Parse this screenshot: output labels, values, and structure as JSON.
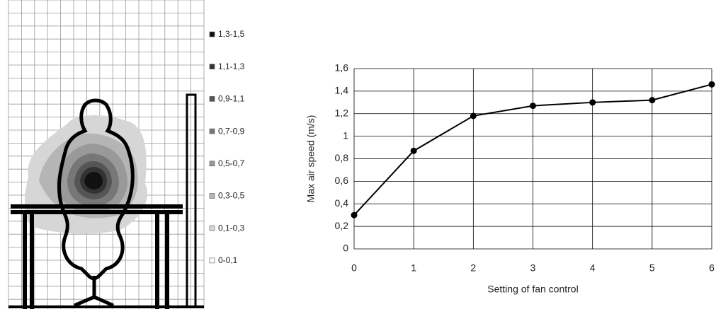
{
  "chart_data": [
    {
      "type": "contour",
      "legend": [
        {
          "label": "1,3-1,5",
          "color": "#111111"
        },
        {
          "label": "1,1-1,3",
          "color": "#333333"
        },
        {
          "label": "0,9-1,1",
          "color": "#555555"
        },
        {
          "label": "0,7-0,9",
          "color": "#777777"
        },
        {
          "label": "0,5-0,7",
          "color": "#999999"
        },
        {
          "label": "0,3-0,5",
          "color": "#b5b5b5"
        },
        {
          "label": "0,1-0,3",
          "color": "#d6d6d6"
        },
        {
          "label": "0-0,1",
          "color": "#ffffff"
        }
      ]
    },
    {
      "type": "line",
      "xlabel": "Setting of fan control",
      "ylabel": "Max air speed (m/s)",
      "x": [
        0,
        1,
        2,
        3,
        4,
        5,
        6
      ],
      "values": [
        0.3,
        0.87,
        1.18,
        1.27,
        1.3,
        1.32,
        1.46
      ],
      "color": "#000000",
      "xlim": [
        0,
        6
      ],
      "xticks": [
        0,
        1,
        2,
        3,
        4,
        5,
        6
      ],
      "ylim": [
        0,
        1.6
      ],
      "yticks": [
        0,
        {
          "value": 0.2,
          "label": "0,2"
        },
        {
          "value": 0.4,
          "label": "0,4"
        },
        {
          "value": 0.6,
          "label": "0,6"
        },
        {
          "value": 0.8,
          "label": "0,8"
        },
        1,
        {
          "value": 1.2,
          "label": "1,2"
        },
        {
          "value": 1.4,
          "label": "1,4"
        },
        {
          "value": 1.6,
          "label": "1,6"
        }
      ],
      "grid": true
    }
  ]
}
